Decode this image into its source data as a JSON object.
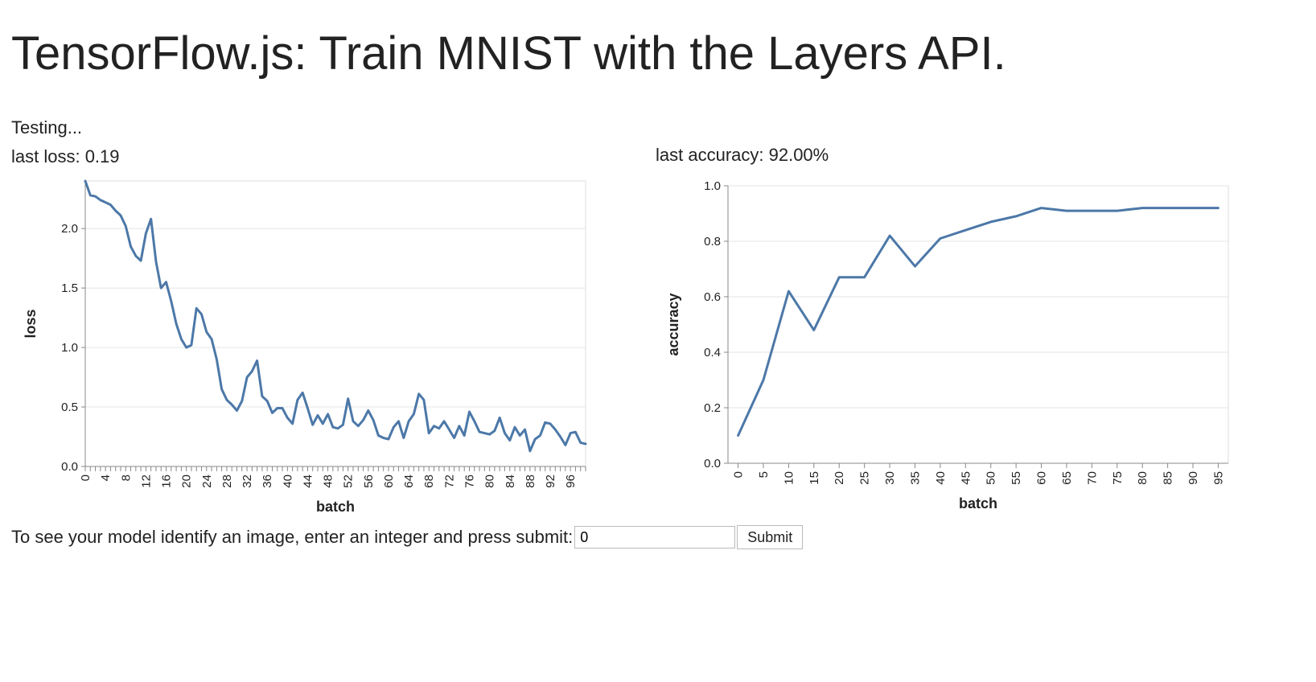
{
  "page": {
    "title": "TensorFlow.js: Train MNIST with the Layers API.",
    "status": "Testing...",
    "last_loss": "last loss: 0.19",
    "last_accuracy": "last accuracy: 92.00%"
  },
  "prediction": {
    "prompt": "To see your model identify an image, enter an integer and press submit:",
    "input_value": "0",
    "submit_label": "Submit"
  },
  "colors": {
    "series": "#4c78a8"
  },
  "chart_data": [
    {
      "type": "line",
      "xlabel": "batch",
      "ylabel": "loss",
      "xlim": [
        0,
        99
      ],
      "ylim": [
        0,
        2.4
      ],
      "yticks": [
        0.0,
        0.5,
        1.0,
        1.5,
        2.0
      ],
      "xtick_labels": [
        0,
        4,
        8,
        12,
        16,
        20,
        24,
        28,
        32,
        36,
        40,
        44,
        48,
        52,
        56,
        60,
        64,
        68,
        72,
        76,
        80,
        84,
        88,
        92,
        96
      ],
      "grid": true,
      "x": [
        0,
        1,
        2,
        3,
        4,
        5,
        6,
        7,
        8,
        9,
        10,
        11,
        12,
        13,
        14,
        15,
        16,
        17,
        18,
        19,
        20,
        21,
        22,
        23,
        24,
        25,
        26,
        27,
        28,
        29,
        30,
        31,
        32,
        33,
        34,
        35,
        36,
        37,
        38,
        39,
        40,
        41,
        42,
        43,
        44,
        45,
        46,
        47,
        48,
        49,
        50,
        51,
        52,
        53,
        54,
        55,
        56,
        57,
        58,
        59,
        60,
        61,
        62,
        63,
        64,
        65,
        66,
        67,
        68,
        69,
        70,
        71,
        72,
        73,
        74,
        75,
        76,
        77,
        78,
        79,
        80,
        81,
        82,
        83,
        84,
        85,
        86,
        87,
        88,
        89,
        90,
        91,
        92,
        93,
        94,
        95,
        96,
        97,
        98,
        99
      ],
      "y": [
        2.4,
        2.28,
        2.27,
        2.24,
        2.22,
        2.2,
        2.15,
        2.11,
        2.02,
        1.85,
        1.77,
        1.73,
        1.96,
        2.08,
        1.72,
        1.5,
        1.55,
        1.39,
        1.2,
        1.07,
        1.0,
        1.02,
        1.33,
        1.28,
        1.13,
        1.07,
        0.9,
        0.65,
        0.56,
        0.52,
        0.47,
        0.55,
        0.75,
        0.8,
        0.89,
        0.59,
        0.55,
        0.45,
        0.49,
        0.49,
        0.41,
        0.36,
        0.56,
        0.62,
        0.49,
        0.35,
        0.43,
        0.36,
        0.44,
        0.33,
        0.32,
        0.35,
        0.57,
        0.38,
        0.34,
        0.39,
        0.47,
        0.39,
        0.26,
        0.24,
        0.23,
        0.33,
        0.38,
        0.24,
        0.38,
        0.44,
        0.61,
        0.56,
        0.28,
        0.34,
        0.32,
        0.38,
        0.31,
        0.24,
        0.34,
        0.26,
        0.46,
        0.38,
        0.29,
        0.28,
        0.27,
        0.3,
        0.41,
        0.28,
        0.22,
        0.33,
        0.26,
        0.31,
        0.13,
        0.23,
        0.26,
        0.37,
        0.36,
        0.31,
        0.25,
        0.18,
        0.28,
        0.29,
        0.2,
        0.19
      ]
    },
    {
      "type": "line",
      "xlabel": "batch",
      "ylabel": "accuracy",
      "xlim": [
        -2,
        97
      ],
      "ylim": [
        0,
        1
      ],
      "yticks": [
        0.0,
        0.2,
        0.4,
        0.6,
        0.8,
        1.0
      ],
      "xtick_labels": [
        0,
        5,
        10,
        15,
        20,
        25,
        30,
        35,
        40,
        45,
        50,
        55,
        60,
        65,
        70,
        75,
        80,
        85,
        90,
        95
      ],
      "grid": true,
      "x": [
        0,
        5,
        10,
        15,
        20,
        25,
        30,
        35,
        40,
        45,
        50,
        55,
        60,
        65,
        70,
        75,
        80,
        85,
        90,
        95
      ],
      "y": [
        0.1,
        0.3,
        0.62,
        0.48,
        0.67,
        0.67,
        0.82,
        0.71,
        0.81,
        0.84,
        0.87,
        0.89,
        0.92,
        0.91,
        0.91,
        0.91,
        0.92,
        0.92,
        0.92,
        0.92
      ]
    }
  ]
}
